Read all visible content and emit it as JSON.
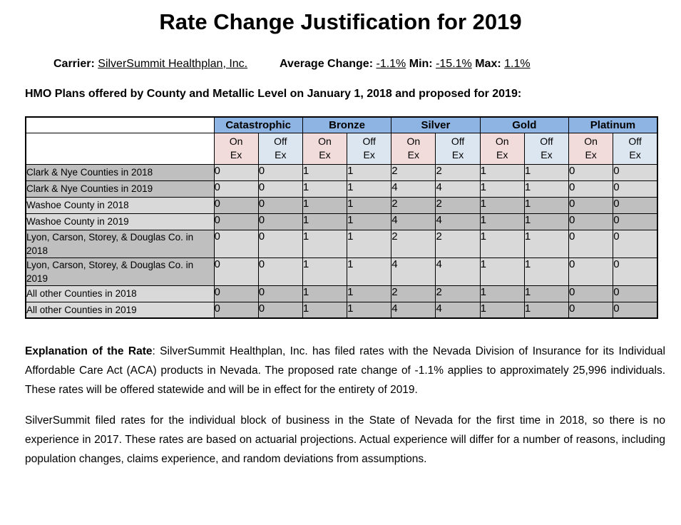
{
  "title": "Rate Change Justification for 2019",
  "meta": {
    "carrier_label": "Carrier:",
    "carrier_value": "SilverSummit Healthplan, Inc.",
    "average_label": "Average Change:",
    "average_value": "-1.1%",
    "min_label": "Min:",
    "min_value": "-15.1%",
    "max_label": "Max:",
    "max_value": "1.1%"
  },
  "table_caption": "HMO Plans offered by County and Metallic Level on January 1, 2018 and proposed for 2019:",
  "table": {
    "metal_headers": [
      "Catastrophic",
      "Bronze",
      "Silver",
      "Gold",
      "Platinum"
    ],
    "exchange_subheaders": {
      "on": [
        "On",
        "Ex"
      ],
      "off": [
        "Off",
        "Ex"
      ]
    },
    "rows": [
      {
        "label": "Clark & Nye Counties in 2018",
        "values": [
          0,
          0,
          1,
          1,
          2,
          2,
          1,
          1,
          0,
          0
        ]
      },
      {
        "label": "Clark & Nye Counties in 2019",
        "values": [
          0,
          0,
          1,
          1,
          4,
          4,
          1,
          1,
          0,
          0
        ]
      },
      {
        "label": "Washoe County in 2018",
        "values": [
          0,
          0,
          1,
          1,
          2,
          2,
          1,
          1,
          0,
          0
        ]
      },
      {
        "label": "Washoe County in 2019",
        "values": [
          0,
          0,
          1,
          1,
          4,
          4,
          1,
          1,
          0,
          0
        ]
      },
      {
        "label": "Lyon, Carson, Storey, & Douglas Co. in 2018",
        "values": [
          0,
          0,
          1,
          1,
          2,
          2,
          1,
          1,
          0,
          0
        ]
      },
      {
        "label": "Lyon, Carson, Storey, & Douglas Co. in 2019",
        "values": [
          0,
          0,
          1,
          1,
          4,
          4,
          1,
          1,
          0,
          0
        ]
      },
      {
        "label": "All other Counties in 2018",
        "values": [
          0,
          0,
          1,
          1,
          2,
          2,
          1,
          1,
          0,
          0
        ]
      },
      {
        "label": "All other Counties in 2019",
        "values": [
          0,
          0,
          1,
          1,
          4,
          4,
          1,
          1,
          0,
          0
        ]
      }
    ]
  },
  "explanation": {
    "lead": "Explanation of the Rate",
    "body": ": SilverSummit Healthplan, Inc. has filed rates with the Nevada Division of Insurance for its Individual Affordable Care Act (ACA) products in Nevada. The proposed rate change of -1.1% applies to approximately 25,996 individuals. These rates will be offered statewide and will be in effect for the entirety of 2019."
  },
  "paragraph2": "SilverSummit filed rates for the individual block of business in the State of Nevada for the first time in 2018, so there is no experience in 2017. These rates are based on actuarial projections. Actual experience will differ for a number of reasons, including population changes, claims experience, and random deviations from assumptions.",
  "colors": {
    "metal_header_bg": "#8DB4E2",
    "on_ex_bg": "#F2DCDB",
    "off_ex_bg": "#DCE6F1",
    "row_dark_bg": "#BFBFBF",
    "row_light_bg": "#D9D9D9",
    "border": "#000000"
  }
}
